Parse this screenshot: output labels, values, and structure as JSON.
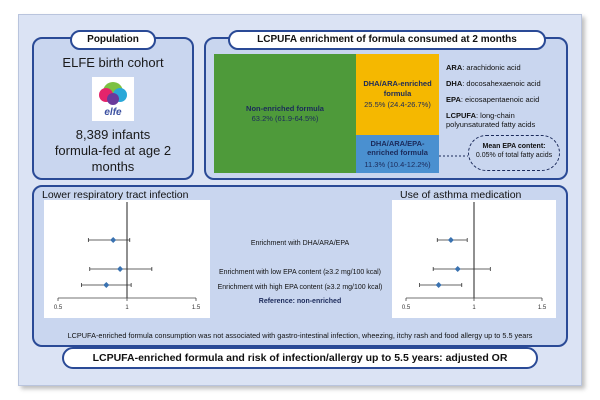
{
  "colors": {
    "panel_border": "#2a4a96",
    "panel_fill": "#c9d6ef",
    "nonenriched": "#4e9a3a",
    "dha_ara": "#f5b800",
    "dha_ara_epa": "#4a90d0",
    "marker": "#3a72b0"
  },
  "population": {
    "pill": "Population",
    "cohort": "ELFE birth cohort",
    "logo_text": "elfe",
    "count": "8,389 infants",
    "desc_line1": "formula-fed at age 2",
    "desc_line2": "months"
  },
  "enrichment": {
    "pill": "LCPUFA enrichment of formula consumed at 2 months",
    "cells": [
      {
        "label": "Non-enriched formula",
        "value": "63.2% (61.9-64.5%)",
        "percent": 63.2
      },
      {
        "label": "DHA/ARA-enriched formula",
        "value": "25.5% (24.4-26.7%)",
        "percent": 25.5
      },
      {
        "label": "DHA/ARA/EPA-enriched formula",
        "value": "11.3% (10.4-12.2%)",
        "percent": 11.3
      }
    ],
    "glossary": [
      {
        "abbr": "ARA",
        "def": ": arachidonic acid"
      },
      {
        "abbr": "DHA",
        "def": ": docosahexaenoic acid"
      },
      {
        "abbr": "EPA",
        "def": ": eicosapentaenoic acid"
      },
      {
        "abbr": "LCPUFA",
        "def": ": long-chain polyunsaturated fatty acids"
      }
    ],
    "epa_title": "Mean EPA content:",
    "epa_value": "0.05% of total fatty acids"
  },
  "forest": {
    "left_title": "Lower respiratory tract infection",
    "right_title": "Use of asthma medication",
    "rows": [
      "Enrichment with DHA/ARA/EPA",
      "Enrichment with low EPA content (≥3.2 mg/100 kcal)",
      "Enrichment with high EPA content (≥3.2 mg/100 kcal)"
    ],
    "reference": "Reference: non-enriched",
    "ticks": [
      "0.5",
      "1",
      "1.5"
    ]
  },
  "chart_data": [
    {
      "type": "scatter",
      "title": "Lower respiratory tract infection",
      "x_range": [
        0.5,
        1.5
      ],
      "categories": [
        "Enrichment with DHA/ARA/EPA",
        "Enrichment with low EPA content (≥3.2 mg/100 kcal)",
        "Enrichment with high EPA content (≥3.2 mg/100 kcal)"
      ],
      "or": [
        0.9,
        0.95,
        0.85
      ],
      "ci_low": [
        0.72,
        0.73,
        0.67
      ],
      "ci_high": [
        1.02,
        1.18,
        1.03
      ]
    },
    {
      "type": "scatter",
      "title": "Use of asthma medication",
      "x_range": [
        0.5,
        1.5
      ],
      "categories": [
        "Enrichment with DHA/ARA/EPA",
        "Enrichment with low EPA content (≥3.2 mg/100 kcal)",
        "Enrichment with high EPA content (≥3.2 mg/100 kcal)"
      ],
      "or": [
        0.83,
        0.88,
        0.74
      ],
      "ci_low": [
        0.73,
        0.7,
        0.6
      ],
      "ci_high": [
        0.95,
        1.12,
        0.91
      ]
    }
  ],
  "footer_note": "LCPUFA-enriched formula consumption was not associated with gastro-intestinal infection, wheezing, itchy rash and food allergy up to 5.5 years",
  "bottom_title": "LCPUFA-enriched formula and risk of infection/allergy up to 5.5 years: adjusted OR"
}
